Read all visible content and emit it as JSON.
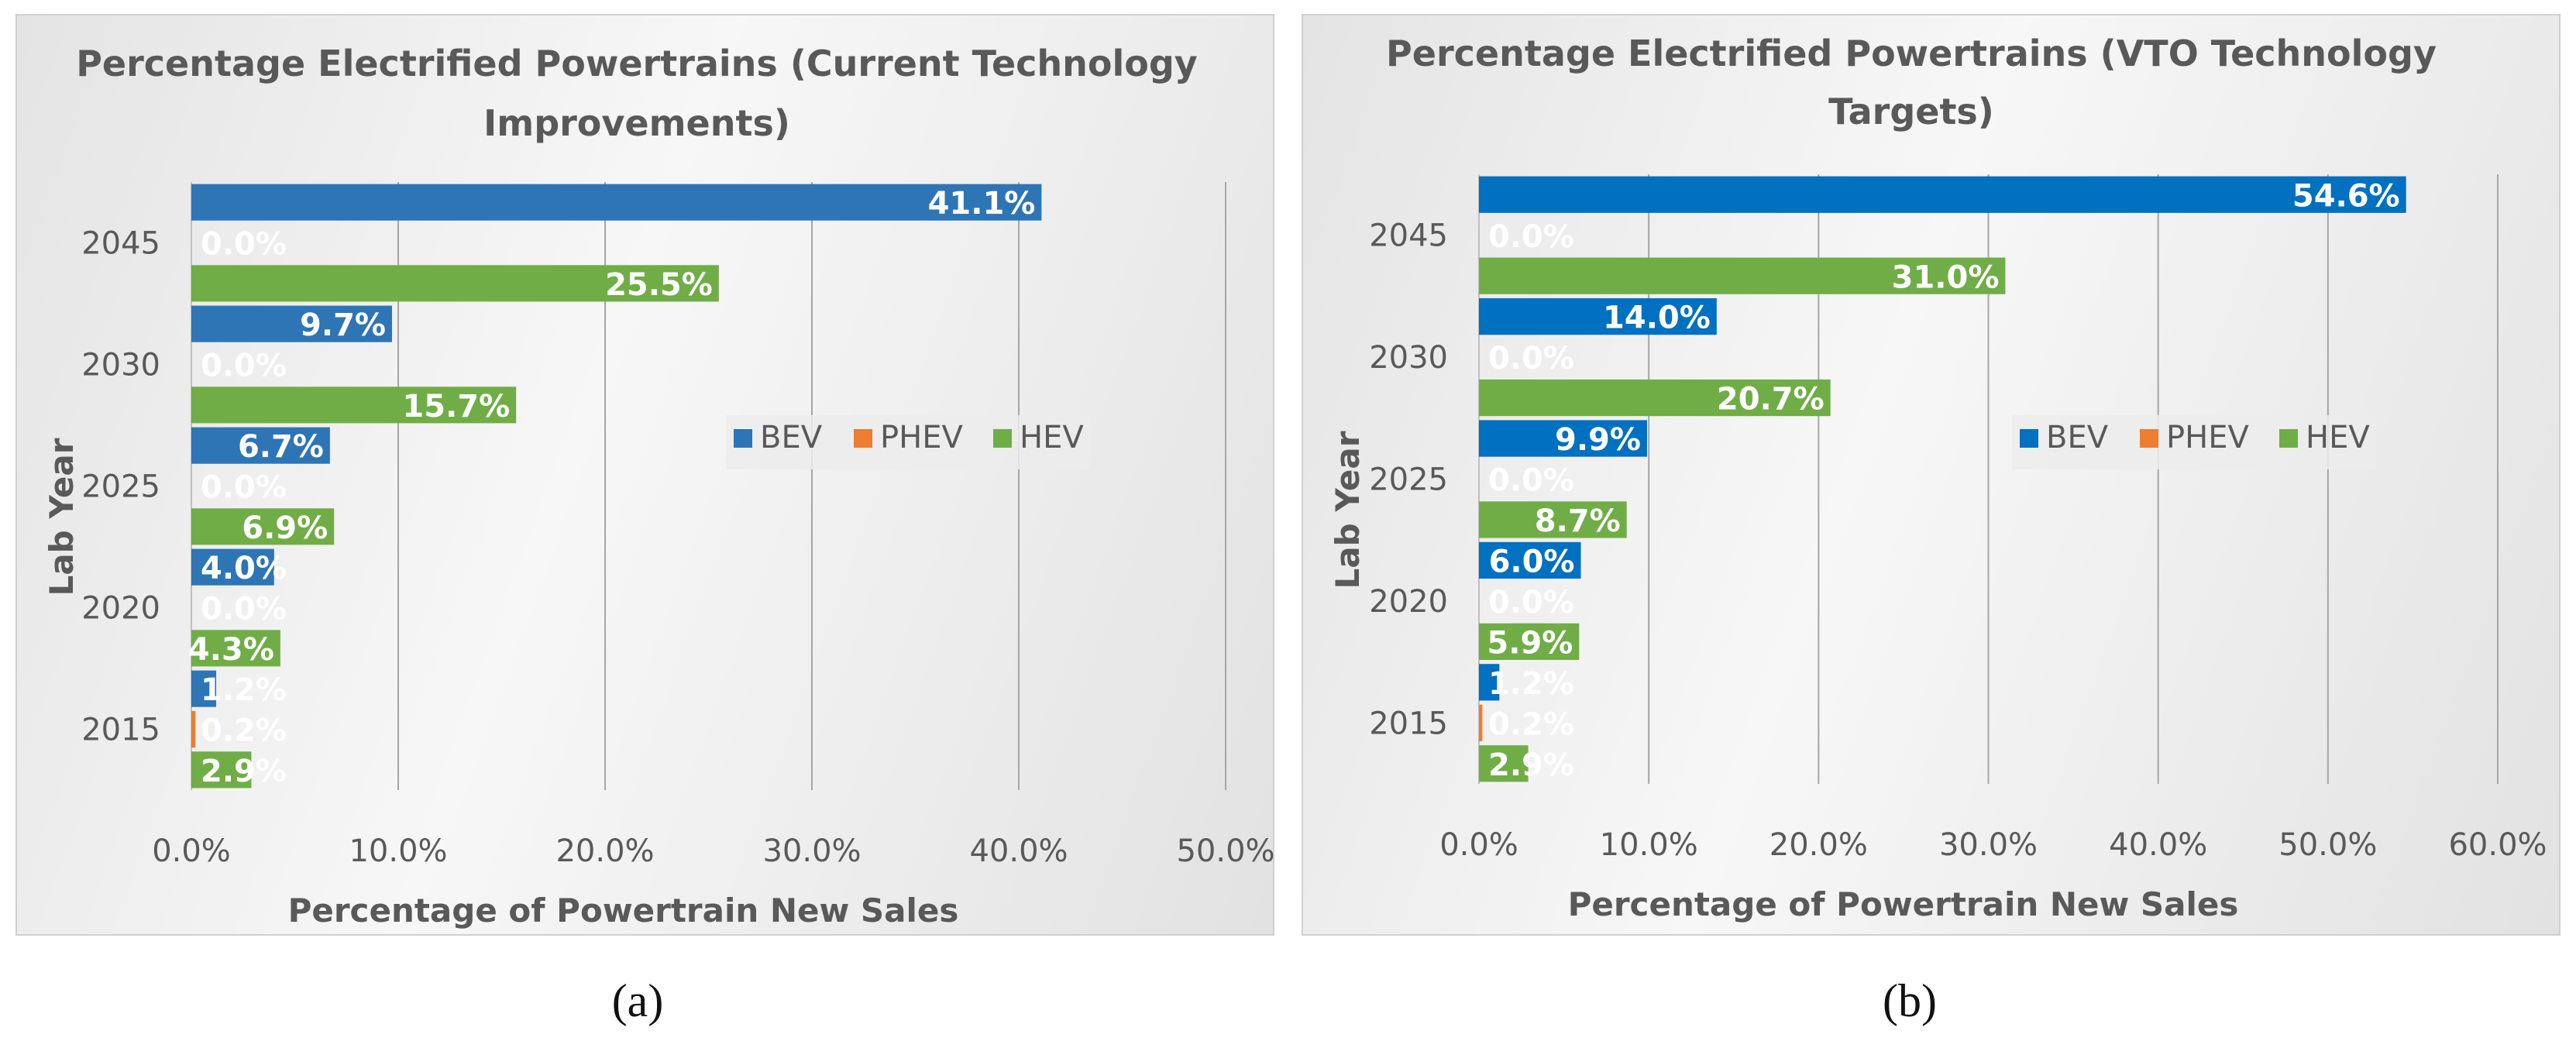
{
  "chart_data": [
    {
      "type": "bar",
      "orientation": "horizontal",
      "panel_label": "(a)",
      "title": "Percentage Electrified Powertrains (Current Technology Improvements)",
      "title_lines": [
        "Percentage Electrified Powertrains (Current Technology",
        "Improvements)"
      ],
      "xlabel": "Percentage of Powertrain New Sales",
      "ylabel": "Lab Year",
      "categories": [
        "2015",
        "2020",
        "2025",
        "2030",
        "2045"
      ],
      "xlim": [
        0,
        50
      ],
      "x_ticks": [
        "0.0%",
        "10.0%",
        "20.0%",
        "30.0%",
        "40.0%",
        "50.0%"
      ],
      "grid": true,
      "legend": "right-center",
      "series": [
        {
          "name": "BEV",
          "color": "#2e75b6",
          "values": [
            1.2,
            4.0,
            6.7,
            9.7,
            41.1
          ],
          "labels": [
            "1.2%",
            "4.0%",
            "6.7%",
            "9.7%",
            "41.1%"
          ]
        },
        {
          "name": "PHEV",
          "color": "#ed7d31",
          "values": [
            0.2,
            0.0,
            0.0,
            0.0,
            0.0
          ],
          "labels": [
            "0.2%",
            "0.0%",
            "0.0%",
            "0.0%",
            "0.0%"
          ]
        },
        {
          "name": "HEV",
          "color": "#70ad47",
          "values": [
            2.9,
            4.3,
            6.9,
            15.7,
            25.5
          ],
          "labels": [
            "2.9%",
            "4.3%",
            "6.9%",
            "15.7%",
            "25.5%"
          ]
        }
      ]
    },
    {
      "type": "bar",
      "orientation": "horizontal",
      "panel_label": "(b)",
      "title": "Percentage Electrified Powertrains (VTO Technology Targets)",
      "title_lines": [
        "Percentage Electrified Powertrains (VTO Technology",
        "Targets)"
      ],
      "xlabel": "Percentage of Powertrain New Sales",
      "ylabel": "Lab Year",
      "categories": [
        "2015",
        "2020",
        "2025",
        "2030",
        "2045"
      ],
      "xlim": [
        0,
        60
      ],
      "x_ticks": [
        "0.0%",
        "10.0%",
        "20.0%",
        "30.0%",
        "40.0%",
        "50.0%",
        "60.0%"
      ],
      "grid": true,
      "legend": "right-center",
      "series": [
        {
          "name": "BEV",
          "color": "#0070c0",
          "values": [
            1.2,
            6.0,
            9.9,
            14.0,
            54.6
          ],
          "labels": [
            "1.2%",
            "6.0%",
            "9.9%",
            "14.0%",
            "54.6%"
          ]
        },
        {
          "name": "PHEV",
          "color": "#ed7d31",
          "values": [
            0.2,
            0.0,
            0.0,
            0.0,
            0.0
          ],
          "labels": [
            "0.2%",
            "0.0%",
            "0.0%",
            "0.0%",
            "0.0%"
          ]
        },
        {
          "name": "HEV",
          "color": "#70ad47",
          "values": [
            2.9,
            5.9,
            8.7,
            20.7,
            31.0
          ],
          "labels": [
            "2.9%",
            "5.9%",
            "8.7%",
            "20.7%",
            "31.0%"
          ]
        }
      ]
    }
  ]
}
